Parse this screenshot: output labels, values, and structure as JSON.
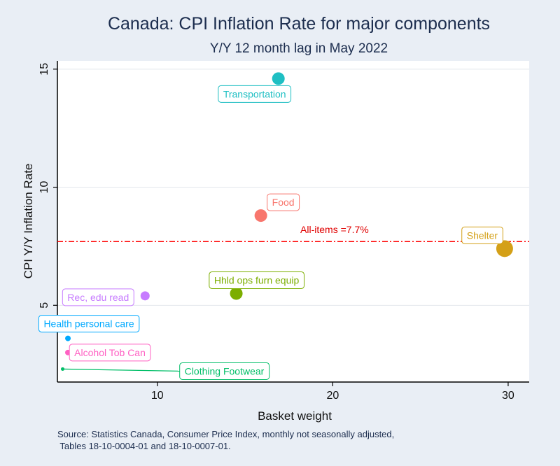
{
  "chart_data": {
    "type": "scatter",
    "title": "Canada: CPI Inflation Rate for major components",
    "subtitle": "Y/Y 12 month lag in May 2022",
    "xlabel": "Basket weight",
    "ylabel": "CPI Y/Y Inflation Rate",
    "xlim": [
      4.3,
      31.2
    ],
    "ylim": [
      1.75,
      15.35
    ],
    "xticks": [
      10,
      20,
      30
    ],
    "yticks": [
      5,
      10,
      15
    ],
    "grid": true,
    "reference_line": {
      "y": 7.7,
      "label": "All-items =7.7%",
      "color": "#ff0000"
    },
    "points": [
      {
        "name": "Transportation",
        "x": 16.9,
        "y": 14.6,
        "color": "#1fbfc3"
      },
      {
        "name": "Food",
        "x": 15.9,
        "y": 8.8,
        "color": "#f8766d"
      },
      {
        "name": "Shelter",
        "x": 29.8,
        "y": 7.4,
        "color": "#d4a017"
      },
      {
        "name": "Hhld ops furn equip",
        "x": 14.5,
        "y": 5.5,
        "color": "#7cae00"
      },
      {
        "name": "Rec, edu read",
        "x": 9.3,
        "y": 5.4,
        "color": "#c77cff"
      },
      {
        "name": "Health personal care",
        "x": 4.9,
        "y": 3.6,
        "color": "#00a9ff"
      },
      {
        "name": "Alcohol Tob Can",
        "x": 4.9,
        "y": 3.0,
        "color": "#ff61c3"
      },
      {
        "name": "Clothing Footwear",
        "x": 4.6,
        "y": 2.3,
        "color": "#00be67"
      }
    ]
  },
  "note": {
    "line1": "Source: Statistics Canada, Consumer Price Index, monthly not seasonally adjusted,",
    "line2": " Tables 18-10-0004-01 and 18-10-0007-01."
  }
}
